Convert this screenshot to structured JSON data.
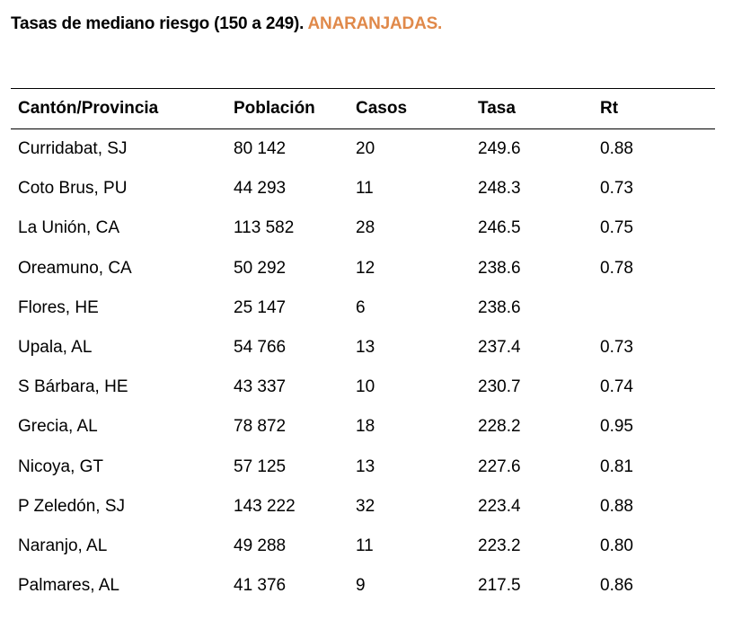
{
  "title": {
    "main": "Tasas de mediano riesgo (150 a 249).",
    "accent": "ANARANJADAS.",
    "accent_color": "#e0894a"
  },
  "table": {
    "headers": [
      "Cantón/Provincia",
      "Población",
      "Casos",
      "Tasa",
      "Rt"
    ],
    "rows": [
      [
        "Curridabat, SJ",
        "80 142",
        "20",
        "249.6",
        "0.88"
      ],
      [
        "Coto Brus, PU",
        "44 293",
        "11",
        "248.3",
        "0.73"
      ],
      [
        "La Unión, CA",
        "113 582",
        "28",
        "246.5",
        "0.75"
      ],
      [
        "Oreamuno, CA",
        "50 292",
        "12",
        "238.6",
        "0.78"
      ],
      [
        "Flores, HE",
        "25 147",
        "6",
        "238.6",
        ""
      ],
      [
        "Upala, AL",
        "54 766",
        "13",
        "237.4",
        "0.73"
      ],
      [
        "S Bárbara, HE",
        "43 337",
        "10",
        "230.7",
        "0.74"
      ],
      [
        "Grecia, AL",
        "78 872",
        "18",
        "228.2",
        "0.95"
      ],
      [
        "Nicoya, GT",
        "57 125",
        "13",
        "227.6",
        "0.81"
      ],
      [
        "P Zeledón, SJ",
        "143 222",
        "32",
        "223.4",
        "0.88"
      ],
      [
        "Naranjo, AL",
        "49 288",
        "11",
        "223.2",
        "0.80"
      ],
      [
        "Palmares, AL",
        "41 376",
        "9",
        "217.5",
        "0.86"
      ]
    ]
  }
}
